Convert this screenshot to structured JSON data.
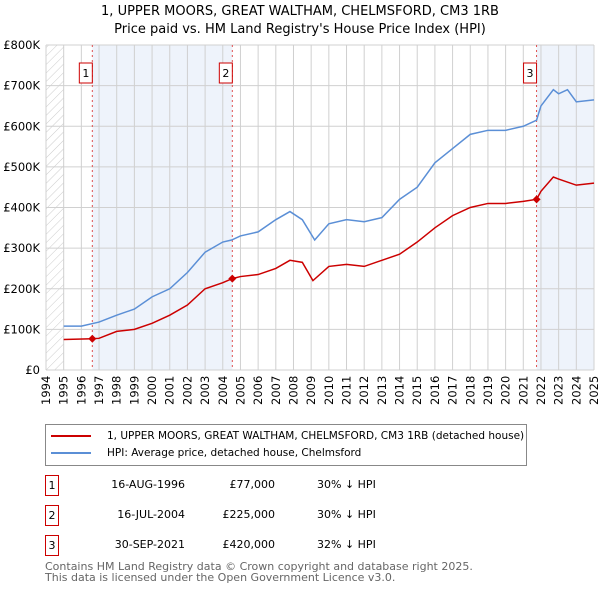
{
  "title_line1": "1, UPPER MOORS, GREAT WALTHAM, CHELMSFORD, CM3 1RB",
  "title_line2": "Price paid vs. HM Land Registry's House Price Index (HPI)",
  "colors": {
    "property": "#cc0000",
    "hpi": "#5b8fd6",
    "shade": "#eef3fb",
    "marker": "#cc0000"
  },
  "chart_data": {
    "type": "line",
    "xlim": [
      1994,
      2025
    ],
    "ylim": [
      0,
      800000
    ],
    "yticks": [
      {
        "v": 0,
        "label": "£0"
      },
      {
        "v": 100000,
        "label": "£100K"
      },
      {
        "v": 200000,
        "label": "£200K"
      },
      {
        "v": 300000,
        "label": "£300K"
      },
      {
        "v": 400000,
        "label": "£400K"
      },
      {
        "v": 500000,
        "label": "£500K"
      },
      {
        "v": 600000,
        "label": "£600K"
      },
      {
        "v": 700000,
        "label": "£700K"
      },
      {
        "v": 800000,
        "label": "£800K"
      }
    ],
    "xticks": [
      "1994",
      "1995",
      "1996",
      "1997",
      "1998",
      "1999",
      "2000",
      "2001",
      "2002",
      "2003",
      "2004",
      "2005",
      "2006",
      "2007",
      "2008",
      "2009",
      "2010",
      "2011",
      "2012",
      "2013",
      "2014",
      "2015",
      "2016",
      "2017",
      "2018",
      "2019",
      "2020",
      "2021",
      "2022",
      "2023",
      "2024",
      "2025"
    ],
    "series": [
      {
        "name": "1, UPPER MOORS, GREAT WALTHAM, CHELMSFORD, CM3 1RB (detached house)",
        "color": "#cc0000",
        "x": [
          1995,
          1996.62,
          1997,
          1998,
          1999,
          2000,
          2001,
          2002,
          2003,
          2004,
          2004.54,
          2005,
          2006,
          2007,
          2007.8,
          2008.5,
          2009.1,
          2010,
          2011,
          2012,
          2013,
          2014,
          2015,
          2016,
          2017,
          2018,
          2019,
          2020,
          2021,
          2021.75,
          2022,
          2022.7,
          2023,
          2024,
          2025
        ],
        "y": [
          75000,
          77000,
          78000,
          95000,
          100000,
          115000,
          135000,
          160000,
          200000,
          215000,
          225000,
          230000,
          235000,
          250000,
          270000,
          265000,
          220000,
          255000,
          260000,
          255000,
          270000,
          285000,
          315000,
          350000,
          380000,
          400000,
          410000,
          410000,
          415000,
          420000,
          440000,
          475000,
          470000,
          455000,
          460000
        ]
      },
      {
        "name": "HPI: Average price, detached house, Chelmsford",
        "color": "#5b8fd6",
        "x": [
          1995,
          1996,
          1997,
          1998,
          1999,
          2000,
          2001,
          2002,
          2003,
          2004,
          2004.5,
          2005,
          2006,
          2007,
          2007.8,
          2008.5,
          2009.2,
          2010,
          2011,
          2012,
          2013,
          2014,
          2015,
          2016,
          2017,
          2018,
          2019,
          2020,
          2021,
          2021.75,
          2022,
          2022.7,
          2023,
          2023.5,
          2024,
          2025
        ],
        "y": [
          108000,
          108000,
          118000,
          135000,
          150000,
          180000,
          200000,
          240000,
          290000,
          315000,
          320000,
          330000,
          340000,
          370000,
          390000,
          370000,
          320000,
          360000,
          370000,
          365000,
          375000,
          420000,
          450000,
          510000,
          545000,
          580000,
          590000,
          590000,
          600000,
          615000,
          650000,
          690000,
          680000,
          690000,
          660000,
          665000
        ]
      }
    ],
    "sales": [
      {
        "n": "1",
        "x": 1996.62,
        "y": 77000
      },
      {
        "n": "2",
        "x": 2004.54,
        "y": 225000
      },
      {
        "n": "3",
        "x": 2021.75,
        "y": 420000
      }
    ],
    "shaded": [
      [
        1996.62,
        2004.54
      ],
      [
        2021.75,
        2025
      ]
    ],
    "hatched": [
      1994,
      1995
    ]
  },
  "legend": [
    "1, UPPER MOORS, GREAT WALTHAM, CHELMSFORD, CM3 1RB (detached house)",
    "HPI: Average price, detached house, Chelmsford"
  ],
  "table": [
    {
      "n": "1",
      "date": "16-AUG-1996",
      "price": "£77,000",
      "hpi": "30% ↓ HPI"
    },
    {
      "n": "2",
      "date": "16-JUL-2004",
      "price": "£225,000",
      "hpi": "30% ↓ HPI"
    },
    {
      "n": "3",
      "date": "30-SEP-2021",
      "price": "£420,000",
      "hpi": "32% ↓ HPI"
    }
  ],
  "footer_line1": "Contains HM Land Registry data © Crown copyright and database right 2025.",
  "footer_line2": "This data is licensed under the Open Government Licence v3.0."
}
